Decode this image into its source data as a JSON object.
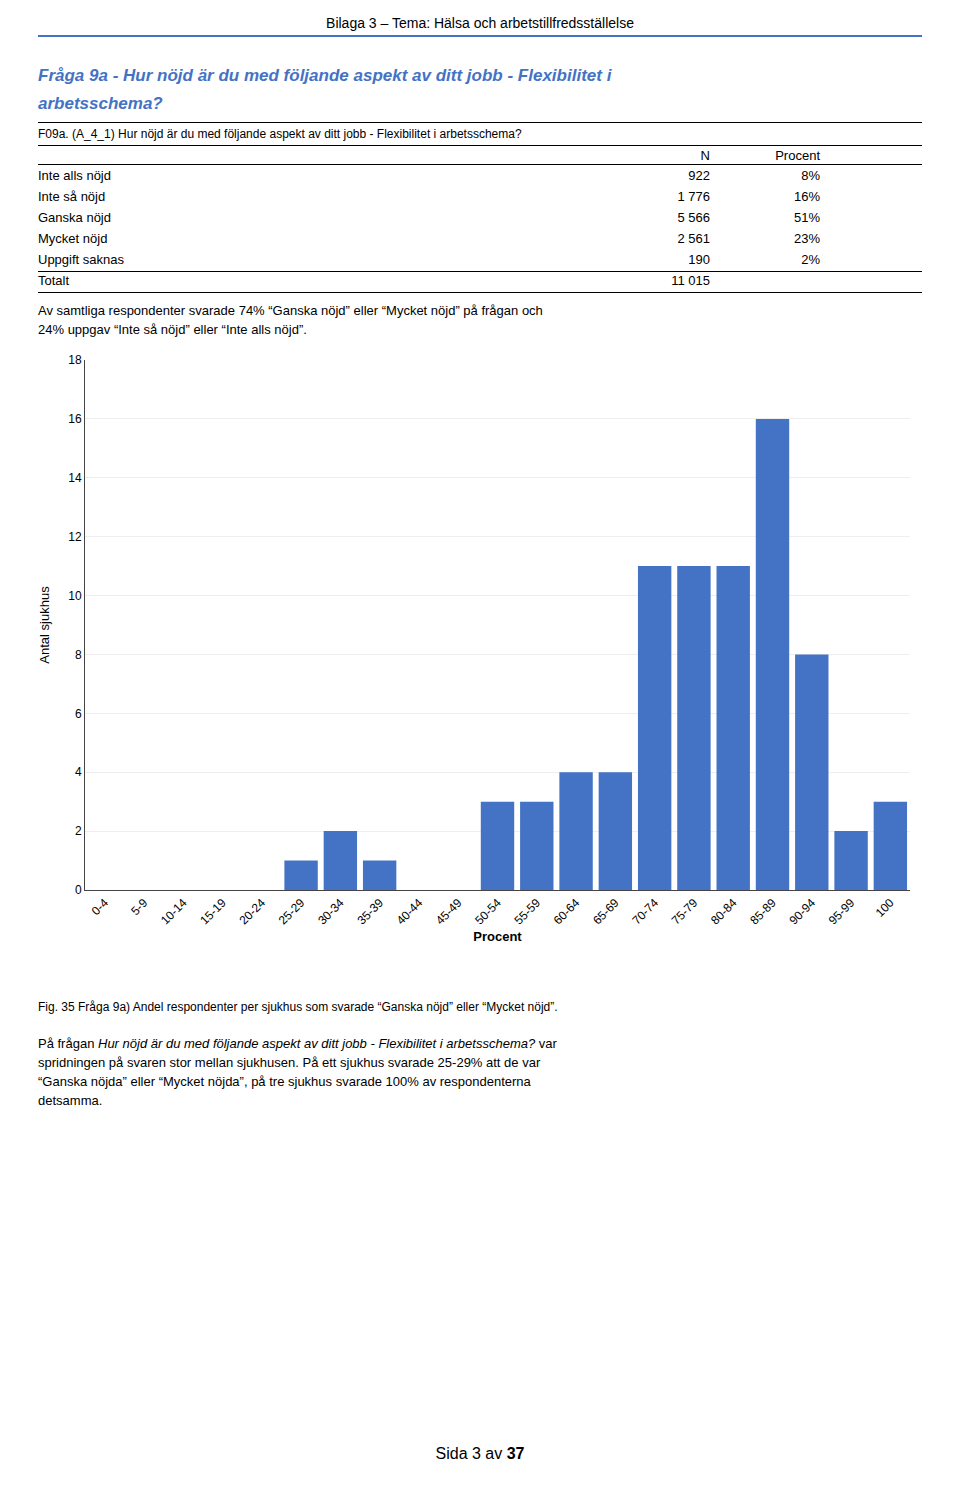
{
  "page": {
    "title": "Bilaga 3 – Tema: Hälsa och arbetstillfredsställelse",
    "title_line_color": "#4472C4",
    "heading": [
      "Fråga 9a - Hur nöjd är du med följande aspekt av ditt jobb - Flexibilitet i",
      "arbetsschema?"
    ],
    "heading_color": "#4472C4",
    "table_question": "F09a. (A_4_1) Hur nöjd är du med följande aspekt av ditt jobb - Flexibilitet i arbetsschema?",
    "table": {
      "columns": [
        "N",
        "Procent"
      ],
      "rows": [
        [
          "Inte alls nöjd",
          "922",
          "8%"
        ],
        [
          "Inte så nöjd",
          "1 776",
          "16%"
        ],
        [
          "Ganska nöjd",
          "5 566",
          "51%"
        ],
        [
          "Mycket nöjd",
          "2 561",
          "23%"
        ],
        [
          "Uppgift saknas",
          "190",
          "2%"
        ],
        [
          "Totalt",
          "11 015",
          null
        ]
      ]
    },
    "summary": [
      "Av samtliga respondenter svarade 74% “Ganska nöjd” eller “Mycket nöjd” på frågan och",
      "24% uppgav “Inte så nöjd” eller “Inte alls nöjd”."
    ],
    "caption": "Fig. 35 Fråga 9a) Andel respondenter per sjukhus som svarade “Ganska nöjd” eller “Mycket nöjd”.",
    "footer_first_line": [
      {
        "text": "På frågan ",
        "italic": false
      },
      {
        "text": "Hur nöjd är du med följande aspekt av ditt jobb - Flexibilitet i arbetsschema?",
        "italic": true
      },
      {
        "text": " var",
        "italic": false
      }
    ],
    "footer_lines": [
      "spridningen på svaren stor mellan sjukhusen. På ett sjukhus svarade 25-29% att de var",
      "“Ganska nöjda” eller “Mycket nöjda”, på tre sjukhus svarade 100% av respondenterna",
      "detsamma."
    ],
    "page_number": [
      "Sida 3 av ",
      "37"
    ]
  },
  "chart_data": {
    "type": "bar",
    "categories": [
      "0-4",
      "5-9",
      "10-14",
      "15-19",
      "20-24",
      "25-29",
      "30-34",
      "35-39",
      "40-44",
      "45-49",
      "50-54",
      "55-59",
      "60-64",
      "65-69",
      "70-74",
      "75-79",
      "80-84",
      "85-89",
      "90-94",
      "95-99",
      "100"
    ],
    "values": [
      0,
      0,
      0,
      0,
      0,
      1,
      2,
      1,
      0,
      0,
      3,
      3,
      4,
      4,
      11,
      11,
      11,
      16,
      8,
      2,
      3
    ],
    "color": "#4472C4",
    "xlabel": "Procent",
    "ylabel": "Antal sjukhus",
    "ylim": [
      0,
      18
    ],
    "yticks": [
      0,
      2,
      4,
      6,
      8,
      10,
      12,
      14,
      16,
      18
    ],
    "grid": true
  }
}
